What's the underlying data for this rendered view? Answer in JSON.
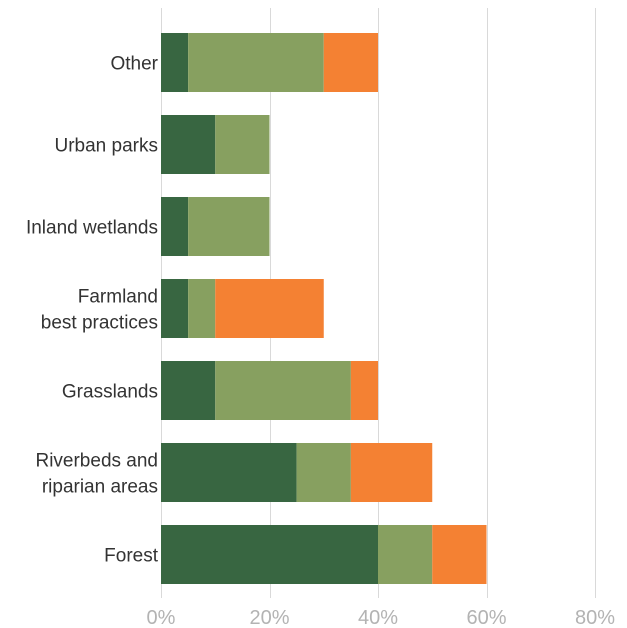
{
  "chart_data": {
    "type": "bar",
    "orientation": "horizontal",
    "stacked": true,
    "categories": [
      [
        "Other"
      ],
      [
        "Urban parks"
      ],
      [
        "Inland wetlands"
      ],
      [
        "Farmland",
        "best practices"
      ],
      [
        "Grasslands"
      ],
      [
        "Riverbeds and",
        "riparian areas"
      ],
      [
        "Forest"
      ]
    ],
    "series": [
      {
        "color": "#386641",
        "values": [
          5,
          10,
          5,
          5,
          10,
          25,
          40
        ]
      },
      {
        "color": "#87a060",
        "values": [
          25,
          10,
          15,
          5,
          25,
          10,
          10
        ]
      },
      {
        "color": "#f48133",
        "values": [
          10,
          0,
          0,
          20,
          5,
          15,
          10
        ]
      }
    ],
    "xlim": [
      0,
      80
    ],
    "x_ticks": [
      0,
      20,
      40,
      60,
      80
    ],
    "x_tick_labels": [
      "0%",
      "20%",
      "40%",
      "60%",
      "80%"
    ],
    "grid": "vertical",
    "legend": "none"
  }
}
